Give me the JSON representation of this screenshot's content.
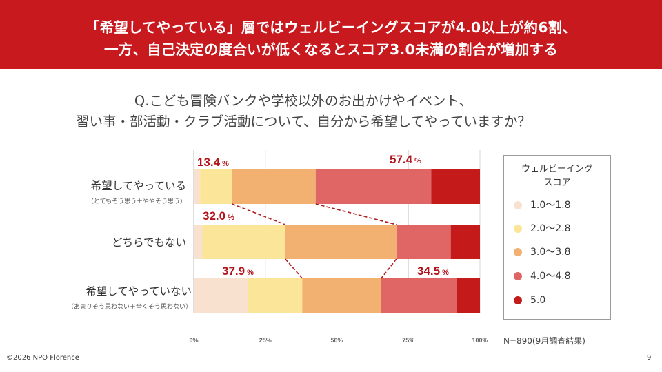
{
  "header": {
    "line1": "「希望してやっている」層ではウェルビーイングスコアが4.0以上が約6割、",
    "line2": "一方、自己決定の度合いが低くなるとスコア3.0未満の割合が増加する"
  },
  "question": {
    "line1": "Q.こども冒険バンクや学校以外のお出かけやイベント、",
    "line2": "習い事・部活動・クラブ活動について、自分から希望してやっていますか？"
  },
  "legend": {
    "title_line1": "ウェルビーイング",
    "title_line2": "スコア"
  },
  "note": "N=890(9月調査結果)",
  "footer": {
    "copyright": "©2026 NPO Florence",
    "page_number": "9"
  },
  "chart_data": {
    "type": "bar",
    "orientation": "horizontal",
    "stacked": true,
    "percent_stacked": true,
    "categories": [
      {
        "label": "希望してやっている",
        "sublabel": "（とてもそう思う＋ややそう思う）"
      },
      {
        "label": "どちらでもない",
        "sublabel": ""
      },
      {
        "label": "希望してやっていない",
        "sublabel": "（あまりそう思わない＋全くそう思わない）"
      }
    ],
    "series": [
      {
        "name": "1.0〜1.8",
        "color": "#f9e1cf",
        "values": [
          2.2,
          3.0,
          19.0
        ]
      },
      {
        "name": "2.0〜2.8",
        "color": "#fbe599",
        "values": [
          11.2,
          29.0,
          18.9
        ]
      },
      {
        "name": "3.0〜3.8",
        "color": "#f3b171",
        "values": [
          29.2,
          38.8,
          27.6
        ]
      },
      {
        "name": "4.0〜4.8",
        "color": "#e06666",
        "values": [
          40.4,
          19.0,
          26.5
        ]
      },
      {
        "name": "5.0",
        "color": "#c41a1a",
        "values": [
          17.0,
          10.2,
          8.0
        ]
      }
    ],
    "annotations": [
      {
        "category_index": 0,
        "side": "low",
        "value": "13.4",
        "unit": "%"
      },
      {
        "category_index": 0,
        "side": "high",
        "value": "57.4",
        "unit": "%"
      },
      {
        "category_index": 1,
        "side": "low",
        "value": "32.0",
        "unit": "%"
      },
      {
        "category_index": 2,
        "side": "low",
        "value": "37.9",
        "unit": "%"
      },
      {
        "category_index": 2,
        "side": "high",
        "value": "34.5",
        "unit": "%"
      }
    ],
    "xticks": [
      "0%",
      "25%",
      "50%",
      "75%",
      "100%"
    ],
    "xlim": [
      0,
      100
    ],
    "grid": true,
    "legend_position": "right",
    "connector_lines": "dashed"
  }
}
